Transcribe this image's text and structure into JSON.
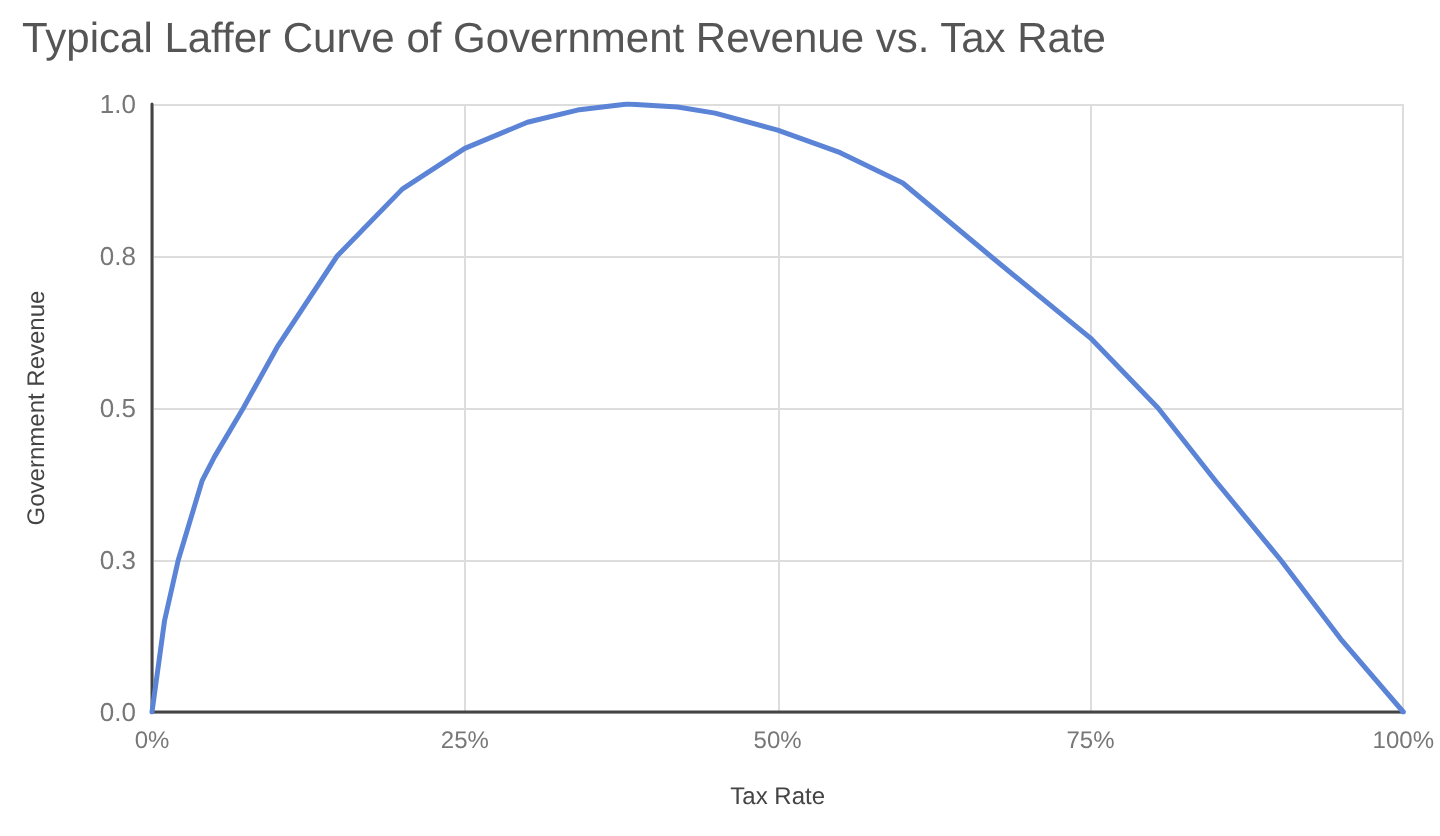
{
  "chart_data": {
    "type": "line",
    "title": "Typical Laffer Curve of Government Revenue vs. Tax Rate",
    "xlabel": "Tax Rate",
    "ylabel": "Government Revenue",
    "x": [
      0,
      1,
      2.1,
      4,
      5,
      7.3,
      10,
      14.8,
      20,
      25,
      30,
      34,
      38,
      42,
      45,
      50,
      55,
      60,
      67,
      75,
      80.4,
      85,
      90.2,
      95,
      100
    ],
    "series": [
      {
        "color": "#5b84d6",
        "values": [
          0,
          0.15,
          0.25,
          0.38,
          0.42,
          0.5,
          0.6,
          0.75,
          0.86,
          0.927,
          0.97,
          0.99,
          1.0,
          0.995,
          0.985,
          0.957,
          0.92,
          0.87,
          0.75,
          0.615,
          0.5,
          0.38,
          0.25,
          0.12,
          0
        ]
      }
    ],
    "xlim": [
      0,
      100
    ],
    "xticks": [
      {
        "value": 0,
        "label": "0%"
      },
      {
        "value": 25,
        "label": "25%"
      },
      {
        "value": 50,
        "label": "50%"
      },
      {
        "value": 75,
        "label": "75%"
      },
      {
        "value": 100,
        "label": "100%"
      }
    ],
    "ylim": [
      0,
      1
    ],
    "yticks": [
      {
        "value": 0,
        "label": "0.0"
      },
      {
        "value": 0.25,
        "label": "0.3"
      },
      {
        "value": 0.5,
        "label": "0.5"
      },
      {
        "value": 0.75,
        "label": "0.8"
      },
      {
        "value": 1,
        "label": "1.0"
      }
    ],
    "grid": true,
    "marker": "none",
    "line_style": "solid"
  }
}
